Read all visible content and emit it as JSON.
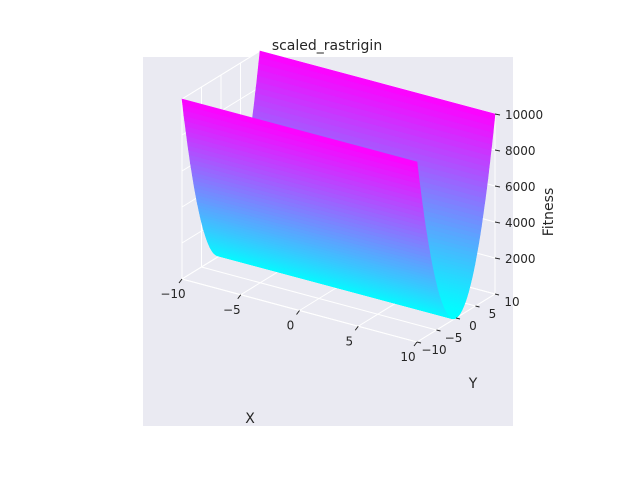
{
  "chart_data": {
    "type": "surface",
    "title": "scaled_rastrigin",
    "xlabel": "X",
    "ylabel": "Y",
    "zlabel": "Fitness",
    "xlim": [
      -10,
      10
    ],
    "ylim": [
      -10,
      10
    ],
    "zlim": [
      0,
      10000
    ],
    "x_ticks": [
      -10,
      -5,
      0,
      5,
      10
    ],
    "y_ticks": [
      -10,
      -5,
      0,
      5,
      10
    ],
    "z_ticks": [
      2000,
      4000,
      6000,
      8000,
      10000
    ],
    "x_tick_labels": [
      "−10",
      "−5",
      "0",
      "5",
      "10"
    ],
    "y_tick_labels": [
      "−10",
      "−5",
      "0",
      "5",
      "10"
    ],
    "z_tick_labels": [
      "2000",
      "4000",
      "6000",
      "8000",
      "10000"
    ],
    "surface": {
      "description_of_shape": "valley along X, parabolic in Y",
      "y_profile": {
        "y": [
          -10,
          -7.5,
          -5,
          -2.5,
          0,
          2.5,
          5,
          7.5,
          10
        ],
        "fitness": [
          10000,
          5625,
          2500,
          625,
          0,
          625,
          2500,
          5625,
          10000
        ]
      }
    },
    "colormap": "cool",
    "colors": {
      "low": "#00ffff",
      "high": "#ff00ff",
      "pane": "#eaeaf2",
      "grid": "#ffffff"
    },
    "grid": true
  }
}
